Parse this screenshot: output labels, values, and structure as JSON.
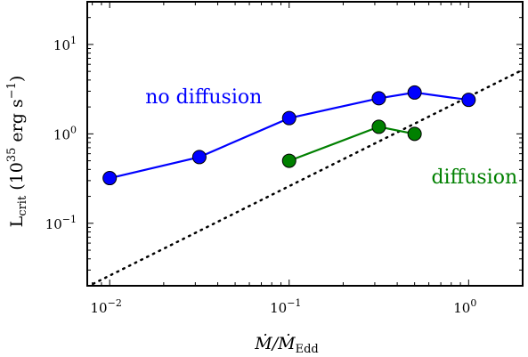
{
  "chart_data": {
    "type": "line",
    "title": "",
    "xlabel": "Ṁ/ṀEdd",
    "xlabel_parts": {
      "main": "Ṁ/Ṁ",
      "sub": "Edd"
    },
    "ylabel": "Lcrit (10^35 erg s^-1)",
    "ylabel_parts": {
      "main": "L",
      "sub": "crit",
      "unit_open": " (10",
      "unit_exp": "35",
      "unit_mid": " erg s",
      "unit_exp2": "−1",
      "unit_close": ")"
    },
    "xscale": "log",
    "yscale": "log",
    "xlim": [
      0.0075,
      2.0
    ],
    "ylim": [
      0.02,
      30
    ],
    "x_ticks": [
      {
        "value": 0.01,
        "base": "10",
        "exp": "−2"
      },
      {
        "value": 0.1,
        "base": "10",
        "exp": "−1"
      },
      {
        "value": 1,
        "base": "10",
        "exp": "0"
      }
    ],
    "y_ticks": [
      {
        "value": 0.1,
        "base": "10",
        "exp": "−1"
      },
      {
        "value": 1,
        "base": "10",
        "exp": "0"
      },
      {
        "value": 10,
        "base": "10",
        "exp": "1"
      }
    ],
    "grid": false,
    "legend": "none",
    "series": [
      {
        "name": "no diffusion",
        "color": "#0000ff",
        "marker": "circle",
        "x": [
          0.01,
          0.0316,
          0.1,
          0.316,
          0.5,
          1.0
        ],
        "y": [
          0.32,
          0.55,
          1.5,
          2.5,
          2.9,
          2.4
        ]
      },
      {
        "name": "diffusion",
        "color": "#008000",
        "marker": "circle",
        "x": [
          0.1,
          0.316,
          0.5
        ],
        "y": [
          0.5,
          1.2,
          1.0
        ]
      }
    ],
    "annotations": [
      {
        "text": "no diffusion",
        "color": "#0000ff",
        "x": 0.0158,
        "y": 2.2
      },
      {
        "text": "diffusion",
        "color": "#008000",
        "x": 0.62,
        "y": 0.28
      }
    ],
    "reference_line": {
      "style": "dotted",
      "color": "#000000",
      "slope": 1,
      "x": [
        0.0075,
        2.0
      ],
      "y": [
        0.0195,
        5.2
      ]
    }
  }
}
